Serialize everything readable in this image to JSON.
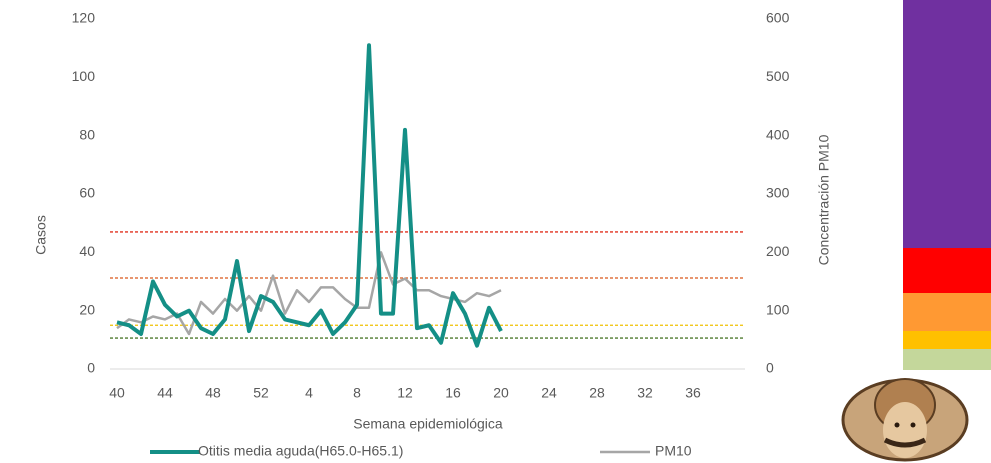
{
  "chart_data": {
    "type": "line",
    "x_label": "Semana epidemiológica",
    "y_label": "Casos",
    "y2_label": "Concentración PM10",
    "categories": [
      "40",
      null,
      null,
      null,
      "44",
      null,
      null,
      null,
      "48",
      null,
      null,
      null,
      "52",
      null,
      null,
      null,
      "4",
      null,
      null,
      null,
      "8",
      null,
      null,
      null,
      "12",
      null,
      null,
      null,
      "16",
      null,
      null,
      null,
      "20",
      null,
      null,
      null,
      "24",
      null,
      null,
      null,
      "28",
      null,
      null,
      null,
      "32",
      null,
      null,
      null,
      "36",
      null,
      null,
      null,
      null
    ],
    "ylim": [
      0,
      120
    ],
    "yticks": [
      0,
      20,
      40,
      60,
      80,
      100,
      120
    ],
    "y2lim": [
      0,
      600
    ],
    "y2ticks": [
      0,
      100,
      200,
      300,
      400,
      500,
      600
    ],
    "series": [
      {
        "name": "Otitis media aguda(H65.0-H65.1)",
        "color": "#148f86",
        "axis": "y",
        "values": [
          16,
          15,
          12,
          30,
          22,
          18,
          20,
          14,
          12,
          17,
          37,
          13,
          25,
          23,
          17,
          16,
          15,
          20,
          12,
          16,
          22,
          111,
          19,
          19,
          82,
          14,
          15,
          9,
          26,
          19,
          8,
          21,
          13,
          null,
          null,
          null,
          null,
          null,
          null,
          null,
          null,
          null,
          null,
          null,
          null,
          null,
          null,
          null,
          null,
          null,
          null,
          null,
          null
        ]
      },
      {
        "name": "PM10",
        "color": "#a6a6a6",
        "axis": "y2",
        "values": [
          70,
          85,
          80,
          90,
          85,
          95,
          60,
          115,
          95,
          120,
          100,
          125,
          100,
          160,
          95,
          135,
          115,
          140,
          140,
          120,
          105,
          105,
          200,
          145,
          155,
          135,
          135,
          125,
          120,
          115,
          130,
          125,
          135,
          null,
          null,
          null,
          null,
          null,
          null,
          null,
          null,
          null,
          null,
          null,
          null,
          null,
          null,
          null,
          null,
          null,
          null,
          null,
          null
        ]
      }
    ],
    "reference_lines": [
      {
        "value": 235,
        "axis": "y2",
        "color": "#e0301e"
      },
      {
        "value": 156,
        "axis": "y2",
        "color": "#d9581a"
      },
      {
        "value": 75,
        "axis": "y2",
        "color": "#f0c000"
      },
      {
        "value": 53,
        "axis": "y2",
        "color": "#4e7a2e"
      }
    ]
  }
}
